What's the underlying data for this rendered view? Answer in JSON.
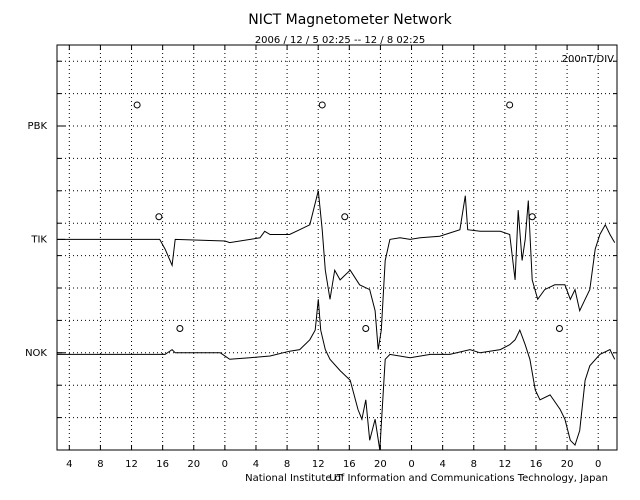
{
  "chart_data": {
    "type": "line",
    "title": "NICT Magnetometer Network",
    "subtitle": "2006 / 12 / 5  02:25 -- 12 / 8  02:25",
    "scale_label": "200nT/DIV",
    "x_label": "UT",
    "footer": "National Institute of Information and Communications Technology, Japan",
    "xlim": [
      0,
      72
    ],
    "xticks": [
      {
        "value": 1.583,
        "label": "4"
      },
      {
        "value": 5.583,
        "label": "8"
      },
      {
        "value": 9.583,
        "label": "12"
      },
      {
        "value": 13.583,
        "label": "16"
      },
      {
        "value": 17.583,
        "label": "20"
      },
      {
        "value": 21.583,
        "label": "0"
      },
      {
        "value": 25.583,
        "label": "4"
      },
      {
        "value": 29.583,
        "label": "8"
      },
      {
        "value": 33.583,
        "label": "12"
      },
      {
        "value": 37.583,
        "label": "16"
      },
      {
        "value": 41.583,
        "label": "20"
      },
      {
        "value": 45.583,
        "label": "0"
      },
      {
        "value": 49.583,
        "label": "4"
      },
      {
        "value": 53.583,
        "label": "8"
      },
      {
        "value": 57.583,
        "label": "12"
      },
      {
        "value": 61.583,
        "label": "16"
      },
      {
        "value": 65.583,
        "label": "20"
      },
      {
        "value": 69.583,
        "label": "0"
      }
    ],
    "ylim": [
      0,
      2500
    ],
    "ygrid": [
      0,
      200,
      400,
      600,
      800,
      1000,
      1200,
      1400,
      1600,
      1800,
      2000,
      2200,
      2400
    ],
    "yticks": [
      {
        "value": 2000,
        "label": "PBK"
      },
      {
        "value": 1300,
        "label": "TIK"
      },
      {
        "value": 600,
        "label": "NOK"
      }
    ],
    "grid": true,
    "series": [
      {
        "name": "TIK",
        "color": "#000000",
        "x": [
          0,
          13.2,
          13.9,
          14.8,
          15.2,
          21.6,
          22.2,
          26.1,
          26.7,
          27.4,
          29.9,
          31.2,
          32.5,
          33.6,
          34.1,
          34.5,
          35.1,
          35.7,
          36.4,
          37.7,
          38.9,
          40.2,
          40.9,
          41.3,
          41.7,
          42.2,
          42.8,
          44.1,
          45.4,
          46.7,
          49.2,
          51.8,
          52.5,
          52.8,
          54.4,
          57.0,
          58.2,
          58.9,
          59.3,
          59.8,
          60.2,
          60.6,
          61.1,
          61.8,
          62.7,
          64.0,
          65.3,
          66.0,
          66.6,
          67.2,
          67.9,
          68.5,
          69.2,
          69.8,
          70.5,
          71.1,
          71.7
        ],
        "values": [
          1300,
          1300,
          1240,
          1140,
          1300,
          1290,
          1280,
          1310,
          1350,
          1330,
          1330,
          1360,
          1390,
          1600,
          1360,
          1110,
          930,
          1110,
          1050,
          1110,
          1020,
          990,
          860,
          620,
          740,
          1170,
          1300,
          1310,
          1300,
          1310,
          1320,
          1360,
          1570,
          1360,
          1350,
          1350,
          1330,
          1050,
          1480,
          1170,
          1300,
          1540,
          1050,
          930,
          990,
          1020,
          1020,
          930,
          990,
          860,
          930,
          990,
          1240,
          1330,
          1390,
          1330,
          1280
        ]
      },
      {
        "name": "NOK",
        "color": "#000000",
        "x": [
          0,
          13.9,
          14.8,
          15.2,
          15.8,
          21.0,
          22.2,
          24.8,
          27.4,
          29.9,
          31.2,
          32.5,
          33.2,
          33.6,
          33.9,
          34.5,
          35.1,
          36.4,
          37.7,
          38.7,
          39.2,
          39.7,
          40.2,
          40.9,
          41.5,
          42.2,
          42.8,
          45.4,
          48.0,
          50.5,
          53.1,
          54.4,
          57.0,
          58.2,
          58.9,
          59.5,
          60.2,
          60.8,
          61.5,
          62.1,
          63.4,
          64.7,
          65.3,
          66.0,
          66.6,
          67.2,
          67.9,
          68.5,
          69.8,
          71.1,
          71.7
        ],
        "values": [
          590,
          590,
          620,
          600,
          600,
          600,
          560,
          570,
          580,
          610,
          620,
          680,
          740,
          930,
          740,
          620,
          560,
          490,
          430,
          250,
          190,
          310,
          60,
          190,
          0,
          560,
          590,
          570,
          590,
          590,
          620,
          600,
          620,
          650,
          680,
          740,
          650,
          560,
          370,
          310,
          340,
          250,
          190,
          60,
          30,
          120,
          430,
          520,
          590,
          620,
          560
        ]
      }
    ],
    "markers": {
      "x": [
        10.3,
        34.1,
        58.2,
        13.1,
        37.0,
        61.1,
        15.8,
        39.7,
        64.6
      ],
      "values": [
        2130,
        2130,
        2130,
        1440,
        1440,
        1440,
        750,
        750,
        750
      ]
    }
  }
}
